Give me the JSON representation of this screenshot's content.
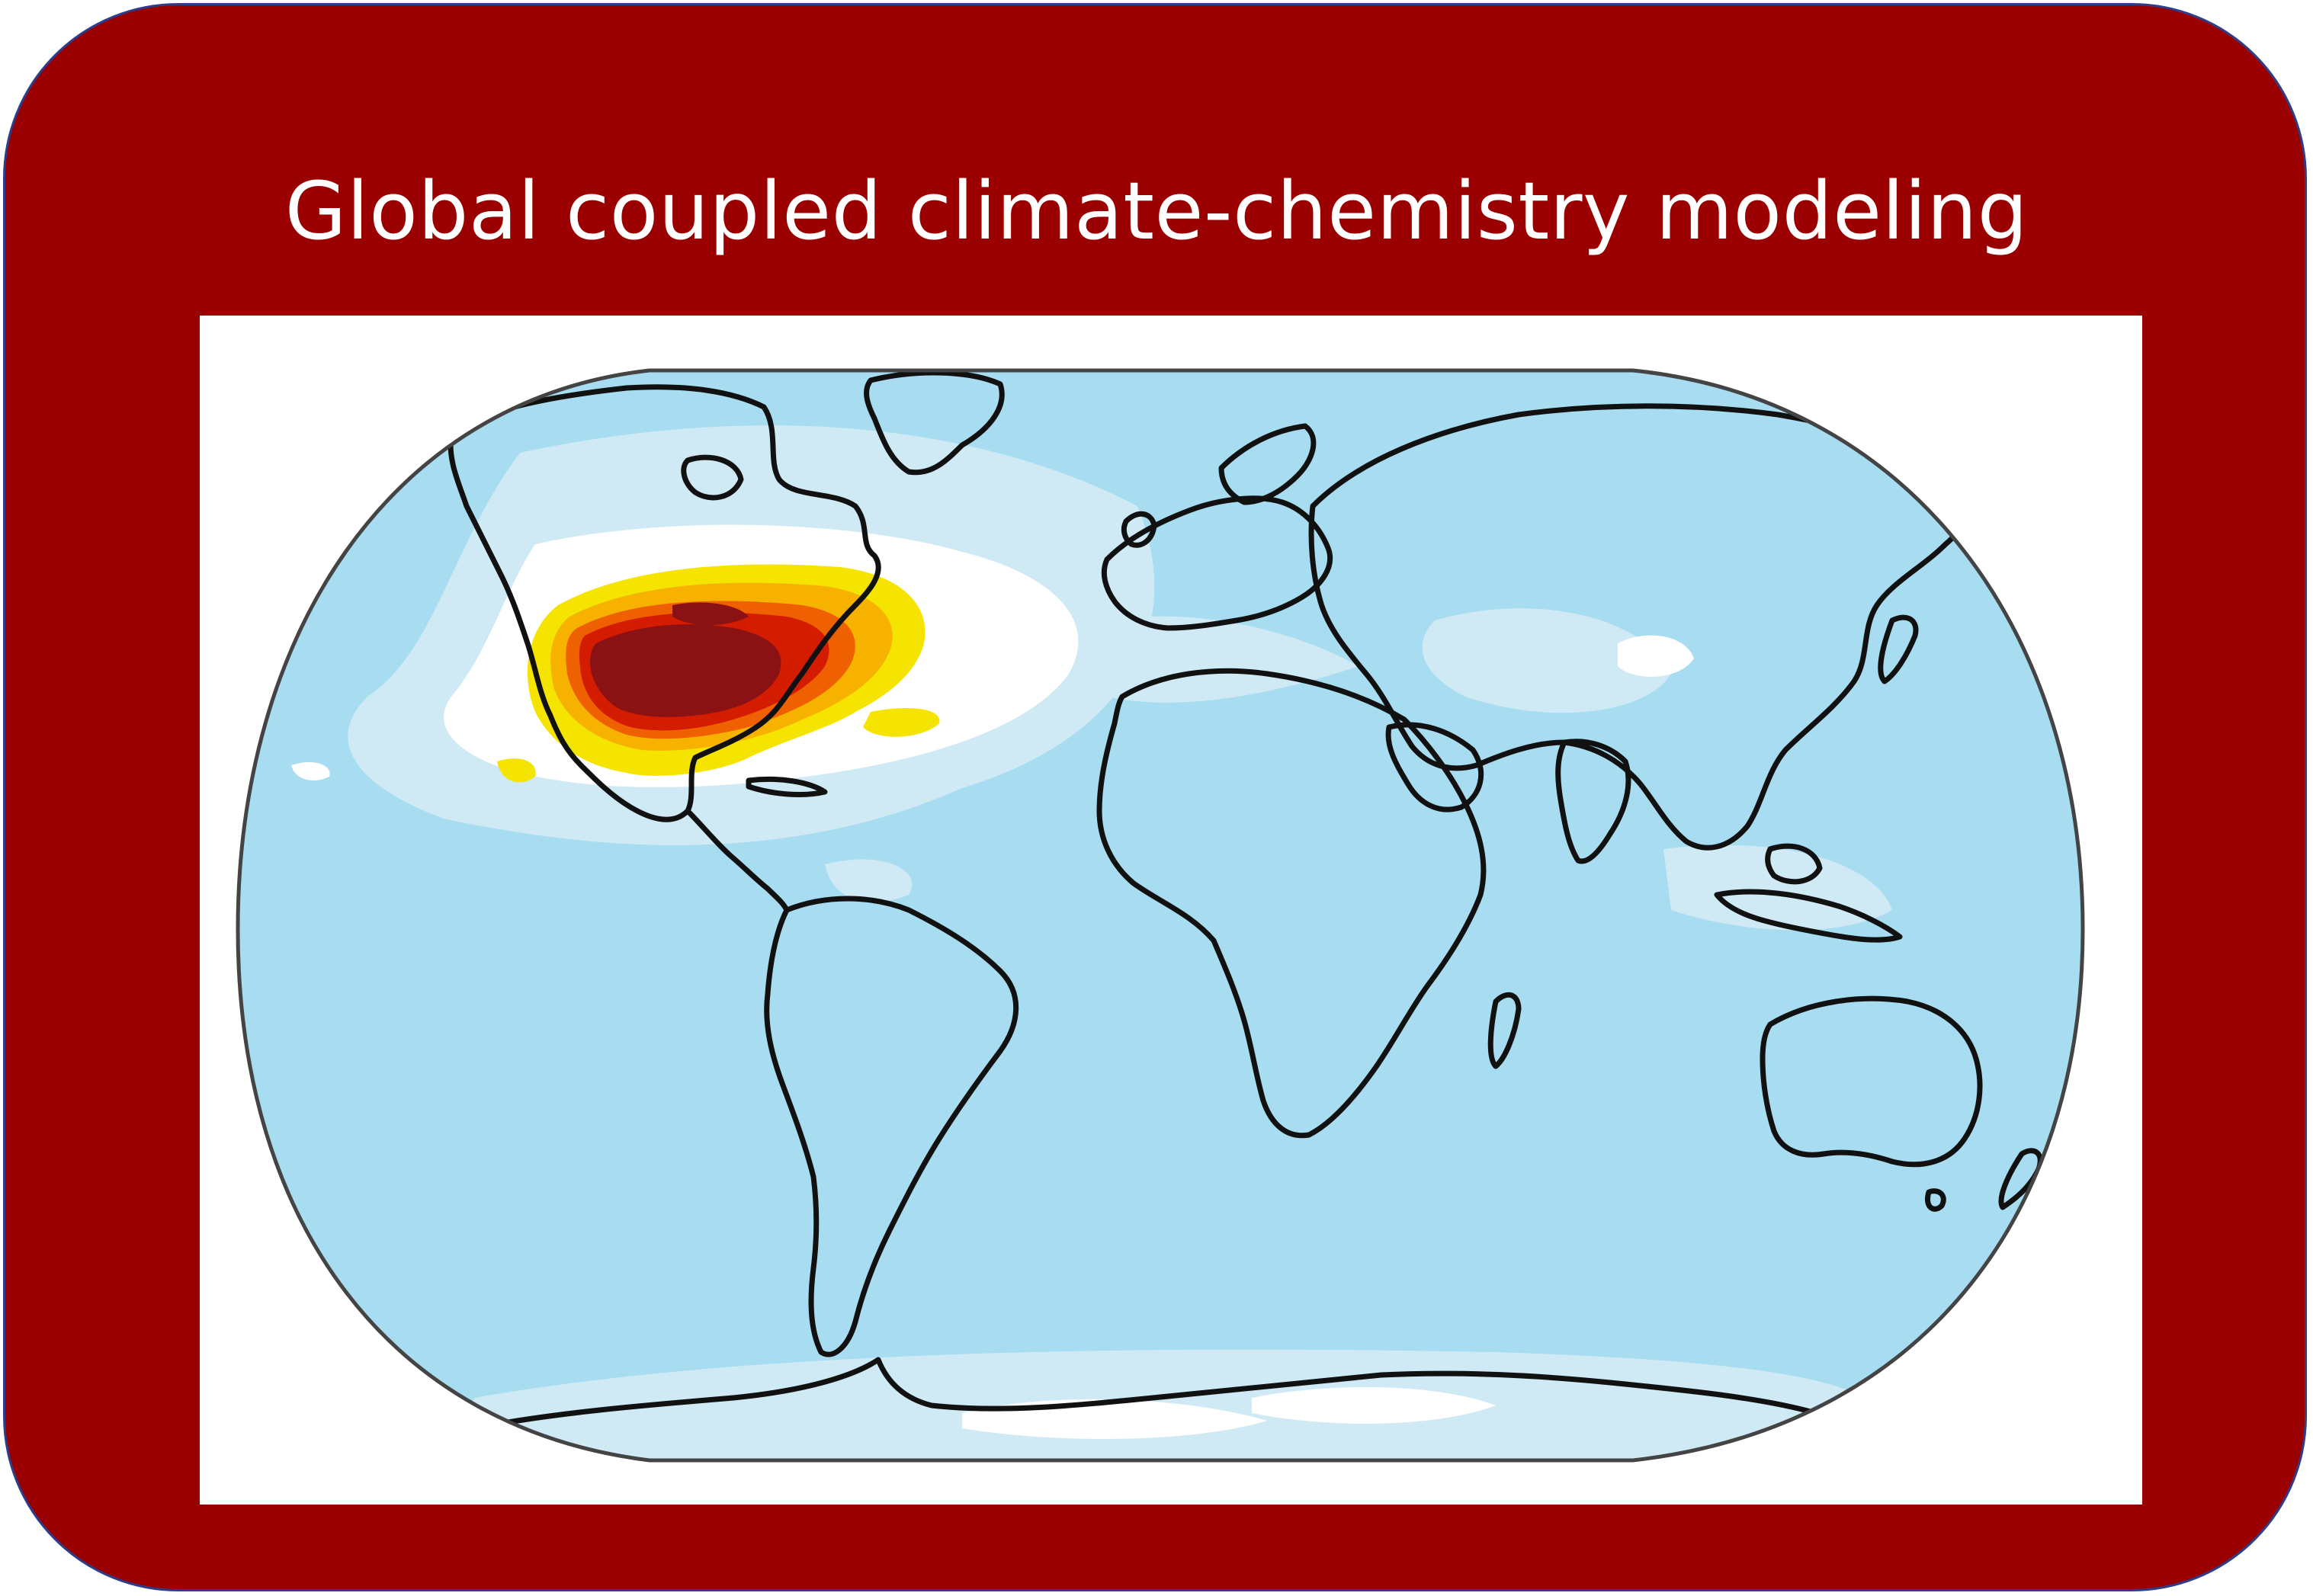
{
  "title": "Global coupled climate-chemistry modeling",
  "map": {
    "projection": "Robinson",
    "colors": {
      "background": "#9b0000",
      "ocean_base": "#a7dcf1",
      "ocean_light": "#cfeaf5",
      "low": "#ffffff",
      "level_1": "#f5e400",
      "level_2": "#f7b200",
      "level_3": "#ee6000",
      "level_4": "#d41c00",
      "level_5": "#8a1214",
      "coastline": "#111111"
    },
    "hotspot_region": "North America"
  }
}
